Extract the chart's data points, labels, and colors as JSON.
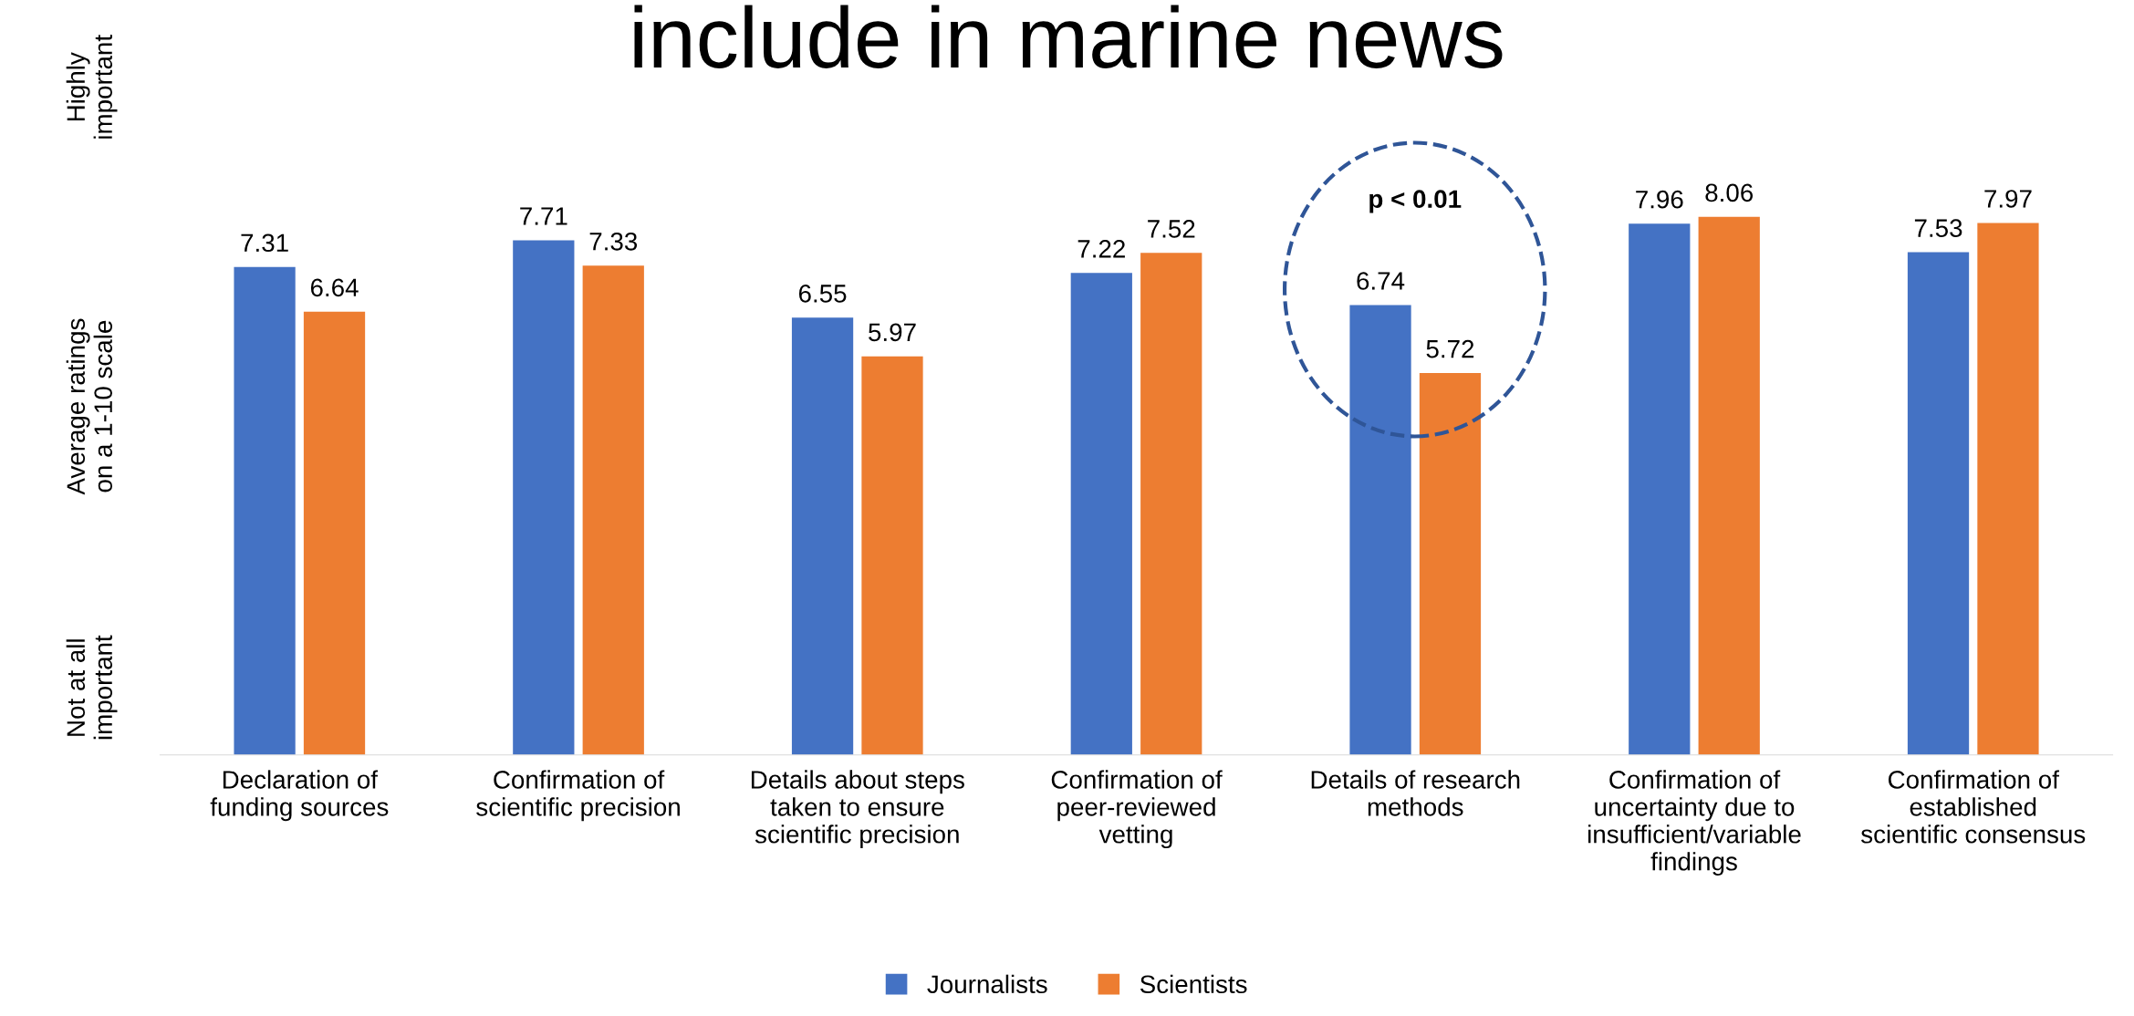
{
  "chart_data": {
    "type": "bar",
    "title": "include in marine news",
    "ylabel": "Average ratings\non a 1-10 scale",
    "categories": [
      "Declaration of\nfunding sources",
      "Confirmation of\nscientific precision",
      "Details about steps\ntaken to ensure\nscientific precision",
      "Confirmation of\npeer-reviewed\nvetting",
      "Details of research\nmethods",
      "Confirmation of\nuncertainty due to\ninsufficient/variable\nfindings",
      "Confirmation of\nestablished\nscientific consensus"
    ],
    "series": [
      {
        "name": "Journalists",
        "color": "#4472c4",
        "values": [
          7.31,
          7.71,
          6.55,
          7.22,
          6.74,
          7.96,
          7.53
        ]
      },
      {
        "name": "Scientists",
        "color": "#ed7d31",
        "values": [
          6.64,
          7.33,
          5.97,
          7.52,
          5.72,
          8.06,
          7.97
        ]
      }
    ],
    "data_labels": true,
    "grid": false,
    "legend": "bottom",
    "annotations": [
      "p < 0.01",
      "Highly\nimportant",
      "Not at all\nimportant"
    ]
  }
}
